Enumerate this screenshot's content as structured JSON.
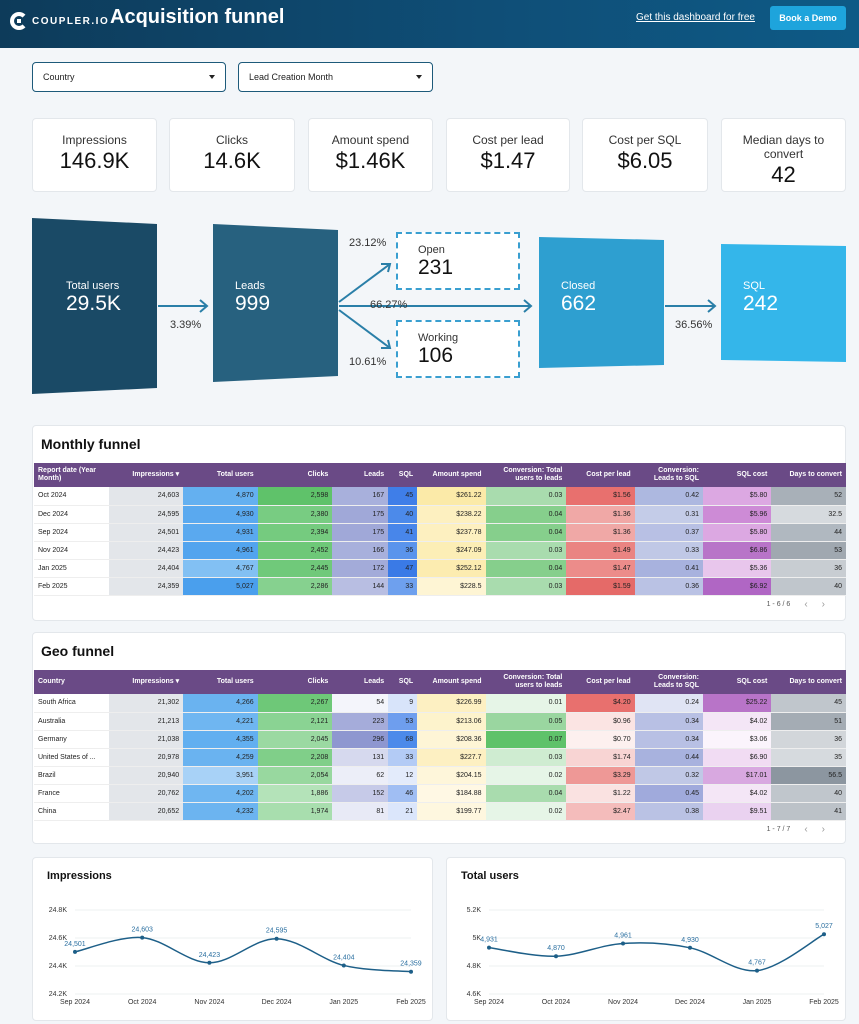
{
  "header": {
    "logo_text": "COUPLER.IO",
    "title": "Acquisition funnel",
    "get_link": "Get this dashboard for free",
    "demo_button": "Book a Demo"
  },
  "filters": {
    "country": "Country",
    "month": "Lead Creation Month"
  },
  "kpis": [
    {
      "label": "Impressions",
      "value": "146.9K"
    },
    {
      "label": "Clicks",
      "value": "14.6K"
    },
    {
      "label": "Amount spend",
      "value": "$1.46K"
    },
    {
      "label": "Cost per lead",
      "value": "$1.47"
    },
    {
      "label": "Cost per SQL",
      "value": "$6.05"
    },
    {
      "label": "Median days to convert",
      "value": "42"
    }
  ],
  "funnel": {
    "total_users": {
      "label": "Total users",
      "value": "29.5K"
    },
    "leads": {
      "label": "Leads",
      "value": "999"
    },
    "open": {
      "label": "Open",
      "value": "231"
    },
    "working": {
      "label": "Working",
      "value": "106"
    },
    "closed": {
      "label": "Closed",
      "value": "662"
    },
    "sql": {
      "label": "SQL",
      "value": "242"
    },
    "pct_users_leads": "3.39%",
    "pct_open": "23.12%",
    "pct_closed": "66.27%",
    "pct_working": "10.61%",
    "pct_sql": "36.56%",
    "colors": {
      "dark": "#1a4a66",
      "mid": "#27617f",
      "light": "#2e9fd0",
      "lighter": "#34b6ea",
      "dash": "#3a9fd0"
    }
  },
  "monthly": {
    "title": "Monthly funnel",
    "headers": [
      "Report date (Year Month)",
      "Impressions ▾",
      "Total users",
      "Clicks",
      "Leads",
      "SQL",
      "Amount spend",
      "Conversion: Total users to leads",
      "Cost per lead",
      "Conversion: Leads to SQL",
      "SQL cost",
      "Days to convert"
    ],
    "rows": [
      [
        "Oct 2024",
        "24,603",
        "4,870",
        "2,598",
        "167",
        "45",
        "$261.22",
        "0.03",
        "$1.56",
        "0.42",
        "$5.80",
        "52"
      ],
      [
        "Dec 2024",
        "24,595",
        "4,930",
        "2,380",
        "175",
        "40",
        "$238.22",
        "0.04",
        "$1.36",
        "0.31",
        "$5.96",
        "32.5"
      ],
      [
        "Sep 2024",
        "24,501",
        "4,931",
        "2,394",
        "175",
        "41",
        "$237.78",
        "0.04",
        "$1.36",
        "0.37",
        "$5.80",
        "44"
      ],
      [
        "Nov 2024",
        "24,423",
        "4,961",
        "2,452",
        "166",
        "36",
        "$247.09",
        "0.03",
        "$1.49",
        "0.33",
        "$6.86",
        "53"
      ],
      [
        "Jan 2025",
        "24,404",
        "4,767",
        "2,445",
        "172",
        "47",
        "$252.12",
        "0.04",
        "$1.47",
        "0.41",
        "$5.36",
        "36"
      ],
      [
        "Feb 2025",
        "24,359",
        "5,027",
        "2,286",
        "144",
        "33",
        "$228.5",
        "0.03",
        "$1.59",
        "0.36",
        "$6.92",
        "40"
      ]
    ],
    "pager": "1 - 6 / 6"
  },
  "geo": {
    "title": "Geo funnel",
    "headers": [
      "Country",
      "Impressions ▾",
      "Total users",
      "Clicks",
      "Leads",
      "SQL",
      "Amount spend",
      "Conversion: Total users to leads",
      "Cost per lead",
      "Conversion: Leads to SQL",
      "SQL cost",
      "Days to convert"
    ],
    "rows": [
      [
        "South Africa",
        "21,302",
        "4,266",
        "2,267",
        "54",
        "9",
        "$226.99",
        "0.01",
        "$4.20",
        "0.24",
        "$25.22",
        "45"
      ],
      [
        "Australia",
        "21,213",
        "4,221",
        "2,121",
        "223",
        "53",
        "$213.06",
        "0.05",
        "$0.96",
        "0.34",
        "$4.02",
        "51"
      ],
      [
        "Germany",
        "21,038",
        "4,355",
        "2,045",
        "296",
        "68",
        "$208.36",
        "0.07",
        "$0.70",
        "0.34",
        "$3.06",
        "36"
      ],
      [
        "United States of ...",
        "20,978",
        "4,259",
        "2,208",
        "131",
        "33",
        "$227.7",
        "0.03",
        "$1.74",
        "0.44",
        "$6.90",
        "35"
      ],
      [
        "Brazil",
        "20,940",
        "3,951",
        "2,054",
        "62",
        "12",
        "$204.15",
        "0.02",
        "$3.29",
        "0.32",
        "$17.01",
        "56.5"
      ],
      [
        "France",
        "20,762",
        "4,202",
        "1,886",
        "152",
        "46",
        "$184.88",
        "0.04",
        "$1.22",
        "0.45",
        "$4.02",
        "40"
      ],
      [
        "China",
        "20,652",
        "4,232",
        "1,974",
        "81",
        "21",
        "$199.77",
        "0.02",
        "$2.47",
        "0.38",
        "$9.51",
        "41"
      ]
    ],
    "pager": "1 - 7 / 7"
  },
  "monthly_colors": [
    [
      "#e3e6ea",
      "#e3e6ea",
      "#64b0f0",
      "#5fc26a",
      "#a8b0dc",
      "#3f7ee8",
      "#fbeaa8",
      "#a9dcae",
      "#e8706e",
      "#adb8e0",
      "#dca8e2",
      "#a8b0b8"
    ],
    [
      "#e3e6ea",
      "#e3e6ea",
      "#5aa9ef",
      "#78cc82",
      "#a0a8d8",
      "#4c8aea",
      "#fdf0c0",
      "#86cf8c",
      "#f0a8a6",
      "#c4cce8",
      "#cd8bd6",
      "#d6dade"
    ],
    [
      "#e3e6ea",
      "#e3e6ea",
      "#5aa9ef",
      "#75cb7f",
      "#a0a8d8",
      "#4886ea",
      "#fdf0c0",
      "#86cf8c",
      "#f0a8a6",
      "#b8c0e4",
      "#dca8e2",
      "#b0b8c0"
    ],
    [
      "#e3e6ea",
      "#e3e6ea",
      "#52a4ee",
      "#6ec878",
      "#a8b0dc",
      "#5a94ec",
      "#fceeb6",
      "#a9dcae",
      "#ea8482",
      "#c0c8e6",
      "#b874c8",
      "#a0a8b0"
    ],
    [
      "#e3e6ea",
      "#e3e6ea",
      "#82c0f3",
      "#70c97a",
      "#a3abd9",
      "#3a7ae6",
      "#fcecb0",
      "#86cf8c",
      "#ec8c8a",
      "#a8b2de",
      "#e8c6ec",
      "#c8cdd2"
    ],
    [
      "#e3e6ea",
      "#e3e6ea",
      "#4a9fed",
      "#86d18f",
      "#b8bee2",
      "#6ea0ee",
      "#fef5d4",
      "#a9dcae",
      "#e56a68",
      "#bac2e4",
      "#b066c4",
      "#c0c6cc"
    ]
  ],
  "geo_colors": [
    [
      "#e3e6ea",
      "#e3e6ea",
      "#6ab3f0",
      "#6ec878",
      "#f4f5fb",
      "#d8e4fa",
      "#fdf0c2",
      "#e6f5e7",
      "#e8706e",
      "#e0e4f4",
      "#b874c8",
      "#c0c6cc"
    ],
    [
      "#e3e6ea",
      "#e3e6ea",
      "#6fb6f1",
      "#8ad393",
      "#a5acda",
      "#6e9eee",
      "#fdf3cc",
      "#9ad6a0",
      "#fbe4e3",
      "#b8c0e4",
      "#f4e6f6",
      "#a4acb4"
    ],
    [
      "#e3e6ea",
      "#e3e6ea",
      "#62aff0",
      "#9bd9a2",
      "#8e97d0",
      "#4c8aea",
      "#fef5d6",
      "#5fc26a",
      "#fdf0ef",
      "#b8c0e4",
      "#fbf4fc",
      "#d2d6da"
    ],
    [
      "#e3e6ea",
      "#e3e6ea",
      "#6ab3f0",
      "#80cf89",
      "#d6d9ee",
      "#b3cbf5",
      "#fdf0c2",
      "#cfecd1",
      "#f8d4d3",
      "#a8b2de",
      "#f1dcf3",
      "#d6dade"
    ],
    [
      "#e3e6ea",
      "#e3e6ea",
      "#a8d2f7",
      "#98d89f",
      "#eceef8",
      "#e3ebfb",
      "#fef6da",
      "#e6f5e7",
      "#ee9896",
      "#c0c8e6",
      "#d8a8e0",
      "#8c96a0"
    ],
    [
      "#e3e6ea",
      "#e3e6ea",
      "#6fb6f1",
      "#b4e3b9",
      "#c6cae8",
      "#a0bef3",
      "#fff8e4",
      "#a9dcae",
      "#fae2e1",
      "#a0aadc",
      "#f4e6f6",
      "#c0c6cc"
    ],
    [
      "#e3e6ea",
      "#e3e6ea",
      "#6cb4f0",
      "#a8deae",
      "#e8eaf6",
      "#dbe6fb",
      "#fef7df",
      "#e6f5e7",
      "#f4bcbb",
      "#bac2e4",
      "#ead2f0",
      "#bcc2c8"
    ]
  ],
  "chart_data": [
    {
      "type": "line",
      "title": "Impressions",
      "categories": [
        "Sep 2024",
        "Oct 2024",
        "Nov 2024",
        "Dec 2024",
        "Jan 2025",
        "Feb 2025"
      ],
      "point_labels": [
        "Sep 2024",
        "Oct 2024",
        "Nov 2024",
        "Dec 2024",
        "Jan 2025",
        "Feb 2025"
      ],
      "values": [
        24501,
        24603,
        24423,
        24595,
        24404,
        24359
      ],
      "value_labels": [
        "24,501",
        "24,603",
        "24,423",
        "24,595",
        "24,404",
        "24,359"
      ],
      "yticks": [
        "24.8K",
        "24.6K",
        "24.4K",
        "24.2K"
      ],
      "ylim": [
        24200,
        24800
      ]
    },
    {
      "type": "line",
      "title": "Total users",
      "categories": [
        "Sep 2024",
        "Oct 2024",
        "Nov 2024",
        "Dec 2024",
        "Jan 2025",
        "Feb 2025"
      ],
      "values": [
        4931,
        4870,
        4961,
        4930,
        4767,
        5027
      ],
      "value_labels": [
        "4,931",
        "4,870",
        "4,961",
        "4,930",
        "4,767",
        "5,027"
      ],
      "yticks": [
        "5.2K",
        "5K",
        "4.8K",
        "4.6K"
      ],
      "ylim": [
        4600,
        5200
      ]
    }
  ]
}
